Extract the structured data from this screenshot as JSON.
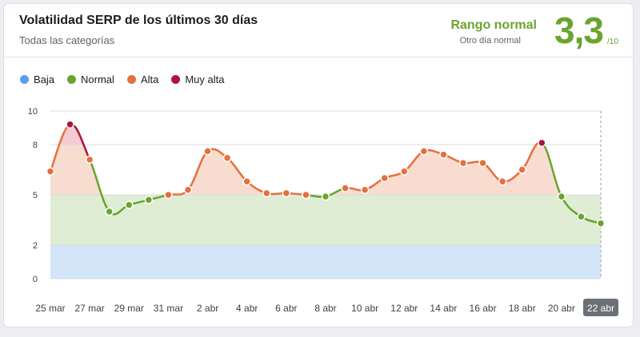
{
  "header": {
    "title": "Volatilidad SERP de los últimos 30 días",
    "subtitle": "Todas las categorías",
    "range_label": "Rango normal",
    "range_sub": "Otro día normal",
    "score": "3,3",
    "score_max": "/10"
  },
  "legend": [
    {
      "label": "Baja",
      "color": "#5b9bf0"
    },
    {
      "label": "Normal",
      "color": "#6aa42d"
    },
    {
      "label": "Alta",
      "color": "#e5703d"
    },
    {
      "label": "Muy alta",
      "color": "#b0123f"
    }
  ],
  "chart_data": {
    "type": "line",
    "title": "Volatilidad SERP de los últimos 30 días",
    "x": [
      "25 mar",
      "26 mar",
      "27 mar",
      "28 mar",
      "29 mar",
      "30 mar",
      "31 mar",
      "1 abr",
      "2 abr",
      "3 abr",
      "4 abr",
      "5 abr",
      "6 abr",
      "7 abr",
      "8 abr",
      "9 abr",
      "10 abr",
      "11 abr",
      "12 abr",
      "13 abr",
      "14 abr",
      "15 abr",
      "16 abr",
      "17 abr",
      "18 abr",
      "19 abr",
      "20 abr",
      "21 abr",
      "22 abr"
    ],
    "x_tick_labels": [
      "25 mar",
      "27 mar",
      "29 mar",
      "31 mar",
      "2 abr",
      "4 abr",
      "6 abr",
      "8 abr",
      "10 abr",
      "12 abr",
      "14 abr",
      "16 abr",
      "18 abr",
      "20 abr",
      "22 abr"
    ],
    "highlighted_x": "22 abr",
    "values": [
      6.4,
      9.2,
      7.1,
      4.0,
      4.4,
      4.7,
      5.0,
      5.3,
      7.6,
      7.2,
      5.8,
      5.1,
      5.1,
      5.0,
      4.9,
      5.4,
      5.3,
      6.0,
      6.4,
      7.6,
      7.4,
      6.9,
      6.9,
      5.8,
      6.5,
      8.1,
      4.9,
      3.7,
      3.3
    ],
    "yticks": [
      0,
      2,
      5,
      8,
      10
    ],
    "ylim": [
      0,
      10
    ],
    "bands": [
      {
        "label": "Baja",
        "from": 0,
        "to": 2,
        "color": "#d2e5f9"
      },
      {
        "label": "Normal",
        "from": 2,
        "to": 5,
        "color": "#dfedd5"
      },
      {
        "label": "Alta",
        "from": 5,
        "to": 8,
        "color": "#f8dccf"
      },
      {
        "label": "Muy alta",
        "from": 8,
        "to": 10,
        "color": "#f3cbd1"
      }
    ],
    "grid": true
  }
}
